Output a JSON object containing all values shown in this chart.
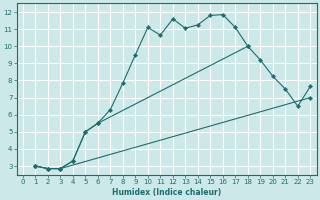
{
  "xlabel": "Humidex (Indice chaleur)",
  "xlim": [
    -0.5,
    23.5
  ],
  "ylim": [
    2.5,
    12.5
  ],
  "xticks": [
    0,
    1,
    2,
    3,
    4,
    5,
    6,
    7,
    8,
    9,
    10,
    11,
    12,
    13,
    14,
    15,
    16,
    17,
    18,
    19,
    20,
    21,
    22,
    23
  ],
  "yticks": [
    3,
    4,
    5,
    6,
    7,
    8,
    9,
    10,
    11,
    12
  ],
  "bg_color": "#cde8e8",
  "grid_color": "#ffffff",
  "line_color": "#1a6e6e",
  "curve1_x": [
    1,
    2,
    3,
    4,
    5,
    6,
    7,
    8,
    9,
    10,
    11,
    12,
    13,
    14,
    15,
    16,
    17,
    18
  ],
  "curve1_y": [
    3.0,
    2.85,
    2.85,
    3.3,
    5.0,
    5.5,
    6.3,
    7.85,
    9.5,
    11.1,
    10.65,
    11.6,
    11.05,
    11.25,
    11.8,
    11.85,
    11.1,
    10.0
  ],
  "curve2_x": [
    1,
    2,
    3,
    23
  ],
  "curve2_y": [
    3.0,
    2.85,
    2.85,
    7.0
  ],
  "curve3_x": [
    1,
    2,
    3,
    4,
    5,
    6,
    18,
    19,
    20,
    21,
    22,
    23
  ],
  "curve3_y": [
    3.0,
    2.85,
    2.85,
    3.3,
    5.0,
    5.5,
    10.0,
    9.2,
    8.25,
    7.5,
    6.5,
    7.65
  ]
}
